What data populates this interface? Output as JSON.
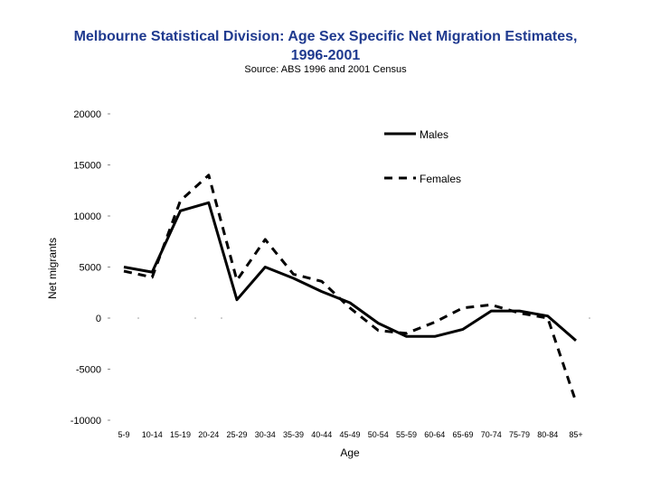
{
  "chart_data": {
    "type": "line",
    "title_line1": "Melbourne Statistical Division:  Age Sex Specific Net Migration Estimates,",
    "title_line2": "1996-2001",
    "subtitle": "Source: ABS 1996 and 2001 Census",
    "xlabel": "Age",
    "ylabel": "Net migrants",
    "ylim": [
      -10000,
      20000
    ],
    "yticks": [
      "20000",
      "15000",
      "10000",
      "5000",
      "0",
      "-5000",
      "-10000"
    ],
    "ytick_values": [
      20000,
      15000,
      10000,
      5000,
      0,
      -5000,
      -10000
    ],
    "categories": [
      "5-9",
      "10-14",
      "15-19",
      "20-24",
      "25-29",
      "30-34",
      "35-39",
      "40-44",
      "45-49",
      "50-54",
      "55-59",
      "60-64",
      "65-69",
      "70-74",
      "75-79",
      "80-84",
      "85+"
    ],
    "series": [
      {
        "name": "Males",
        "style": "solid",
        "values": [
          5000,
          4500,
          10500,
          11300,
          1800,
          5000,
          3900,
          2600,
          1500,
          -500,
          -1800,
          -1800,
          -1100,
          700,
          700,
          200,
          -2200
        ]
      },
      {
        "name": "Females",
        "style": "dashed",
        "values": [
          4600,
          4000,
          11500,
          14000,
          3700,
          7700,
          4300,
          3600,
          1000,
          -1200,
          -1500,
          -400,
          1000,
          1300,
          500,
          0,
          -8200
        ]
      }
    ],
    "legend_position": "top-right"
  }
}
